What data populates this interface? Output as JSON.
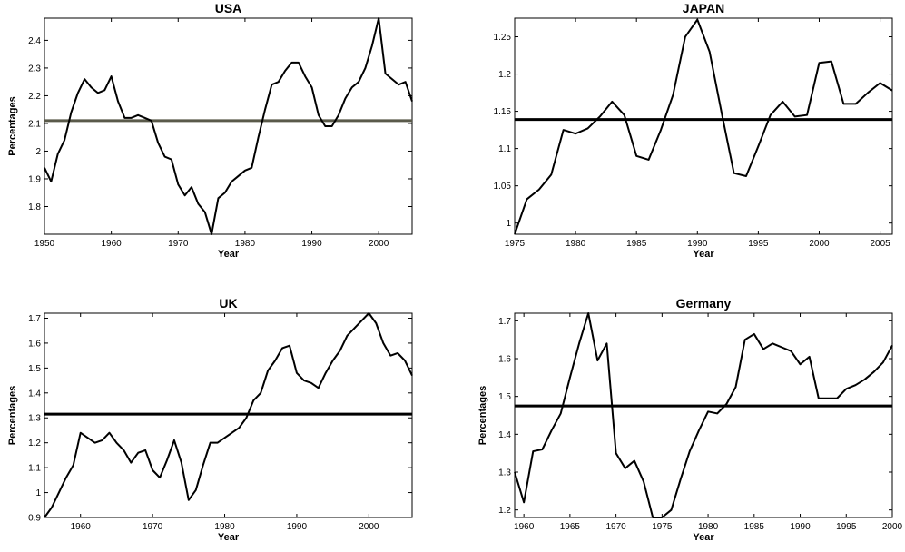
{
  "chart_data": [
    {
      "type": "line",
      "title": "USA",
      "xlabel": "Year",
      "ylabel": "Percentages",
      "xlim": [
        1950,
        2005
      ],
      "ylim": [
        1.7,
        2.48
      ],
      "xticks": [
        1950,
        1960,
        1970,
        1980,
        1990,
        2000
      ],
      "yticks": [
        1.8,
        1.9,
        2,
        2.1,
        2.2,
        2.3,
        2.4
      ],
      "ref_line": {
        "value": 2.11,
        "color": "#5a5a4a"
      },
      "series": [
        {
          "x": [
            1950,
            1951,
            1952,
            1953,
            1954,
            1955,
            1956,
            1957,
            1958,
            1959,
            1960,
            1961,
            1962,
            1963,
            1964,
            1965,
            1966,
            1967,
            1968,
            1969,
            1970,
            1971,
            1972,
            1973,
            1974,
            1975,
            1976,
            1977,
            1978,
            1979,
            1980,
            1981,
            1982,
            1983,
            1984,
            1985,
            1986,
            1987,
            1988,
            1989,
            1990,
            1991,
            1992,
            1993,
            1994,
            1995,
            1996,
            1997,
            1998,
            1999,
            2000,
            2001,
            2002,
            2003,
            2004,
            2005
          ],
          "y": [
            1.94,
            1.89,
            1.99,
            2.04,
            2.14,
            2.21,
            2.26,
            2.23,
            2.21,
            2.22,
            2.27,
            2.18,
            2.12,
            2.12,
            2.13,
            2.12,
            2.11,
            2.03,
            1.98,
            1.97,
            1.88,
            1.84,
            1.87,
            1.81,
            1.78,
            1.7,
            1.83,
            1.85,
            1.89,
            1.91,
            1.93,
            1.94,
            2.05,
            2.15,
            2.24,
            2.25,
            2.29,
            2.32,
            2.32,
            2.27,
            2.23,
            2.13,
            2.09,
            2.09,
            2.13,
            2.19,
            2.23,
            2.25,
            2.3,
            2.38,
            2.48,
            2.28,
            2.26,
            2.24,
            2.25,
            2.18
          ]
        }
      ]
    },
    {
      "type": "line",
      "title": "JAPAN",
      "xlabel": "Year",
      "ylabel": "",
      "xlim": [
        1975,
        2006
      ],
      "ylim": [
        0.985,
        1.275
      ],
      "xticks": [
        1975,
        1980,
        1985,
        1990,
        1995,
        2000,
        2005
      ],
      "yticks": [
        1,
        1.05,
        1.1,
        1.15,
        1.2,
        1.25
      ],
      "ref_line": {
        "value": 1.139,
        "color": "#000000"
      },
      "series": [
        {
          "x": [
            1975,
            1976,
            1977,
            1978,
            1979,
            1980,
            1981,
            1982,
            1983,
            1984,
            1985,
            1986,
            1987,
            1988,
            1989,
            1990,
            1991,
            1992,
            1993,
            1994,
            1995,
            1996,
            1997,
            1998,
            1999,
            2000,
            2001,
            2002,
            2003,
            2004,
            2005,
            2006
          ],
          "y": [
            0.985,
            1.032,
            1.045,
            1.065,
            1.125,
            1.12,
            1.127,
            1.143,
            1.163,
            1.145,
            1.09,
            1.085,
            1.125,
            1.172,
            1.25,
            1.273,
            1.23,
            1.147,
            1.067,
            1.063,
            1.103,
            1.145,
            1.163,
            1.143,
            1.145,
            1.215,
            1.217,
            1.16,
            1.16,
            1.175,
            1.188,
            1.178
          ]
        }
      ]
    },
    {
      "type": "line",
      "title": "UK",
      "xlabel": "Year",
      "ylabel": "Percentages",
      "xlim": [
        1955,
        2006
      ],
      "ylim": [
        0.9,
        1.72
      ],
      "xticks": [
        1960,
        1970,
        1980,
        1990,
        2000
      ],
      "yticks": [
        0.9,
        1,
        1.1,
        1.2,
        1.3,
        1.4,
        1.5,
        1.6,
        1.7
      ],
      "ref_line": {
        "value": 1.315,
        "color": "#000000"
      },
      "series": [
        {
          "x": [
            1955,
            1956,
            1957,
            1958,
            1959,
            1960,
            1961,
            1962,
            1963,
            1964,
            1965,
            1966,
            1967,
            1968,
            1969,
            1970,
            1971,
            1972,
            1973,
            1974,
            1975,
            1976,
            1977,
            1978,
            1979,
            1980,
            1981,
            1982,
            1983,
            1984,
            1985,
            1986,
            1987,
            1988,
            1989,
            1990,
            1991,
            1992,
            1993,
            1994,
            1995,
            1996,
            1997,
            1998,
            1999,
            2000,
            2001,
            2002,
            2003,
            2004,
            2005,
            2006
          ],
          "y": [
            0.9,
            0.94,
            1,
            1.06,
            1.11,
            1.24,
            1.22,
            1.2,
            1.21,
            1.24,
            1.2,
            1.17,
            1.12,
            1.16,
            1.17,
            1.09,
            1.06,
            1.13,
            1.21,
            1.12,
            0.97,
            1.01,
            1.11,
            1.2,
            1.2,
            1.22,
            1.24,
            1.26,
            1.3,
            1.37,
            1.4,
            1.49,
            1.53,
            1.58,
            1.59,
            1.48,
            1.45,
            1.44,
            1.42,
            1.48,
            1.53,
            1.57,
            1.63,
            1.66,
            1.69,
            1.72,
            1.68,
            1.6,
            1.55,
            1.56,
            1.53,
            1.47
          ]
        }
      ]
    },
    {
      "type": "line",
      "title": "Germany",
      "xlabel": "Year",
      "ylabel": "Percentages",
      "xlim": [
        1959,
        2000
      ],
      "ylim": [
        1.18,
        1.72
      ],
      "xticks": [
        1960,
        1965,
        1970,
        1975,
        1980,
        1985,
        1990,
        1995,
        2000
      ],
      "yticks": [
        1.2,
        1.3,
        1.4,
        1.5,
        1.6,
        1.7
      ],
      "ref_line": {
        "value": 1.475,
        "color": "#000000"
      },
      "series": [
        {
          "x": [
            1959,
            1960,
            1961,
            1962,
            1963,
            1964,
            1965,
            1966,
            1967,
            1968,
            1969,
            1970,
            1971,
            1972,
            1973,
            1974,
            1975,
            1976,
            1977,
            1978,
            1979,
            1980,
            1981,
            1982,
            1983,
            1984,
            1985,
            1986,
            1987,
            1988,
            1989,
            1990,
            1991,
            1992,
            1993,
            1994,
            1995,
            1996,
            1997,
            1998,
            1999,
            2000
          ],
          "y": [
            1.3,
            1.22,
            1.355,
            1.36,
            1.41,
            1.455,
            1.55,
            1.64,
            1.72,
            1.595,
            1.64,
            1.35,
            1.31,
            1.33,
            1.275,
            1.18,
            1.18,
            1.2,
            1.28,
            1.355,
            1.41,
            1.46,
            1.455,
            1.48,
            1.525,
            1.65,
            1.665,
            1.625,
            1.64,
            1.63,
            1.62,
            1.585,
            1.605,
            1.495,
            1.495,
            1.495,
            1.52,
            1.53,
            1.545,
            1.565,
            1.59,
            1.635
          ]
        }
      ]
    }
  ]
}
